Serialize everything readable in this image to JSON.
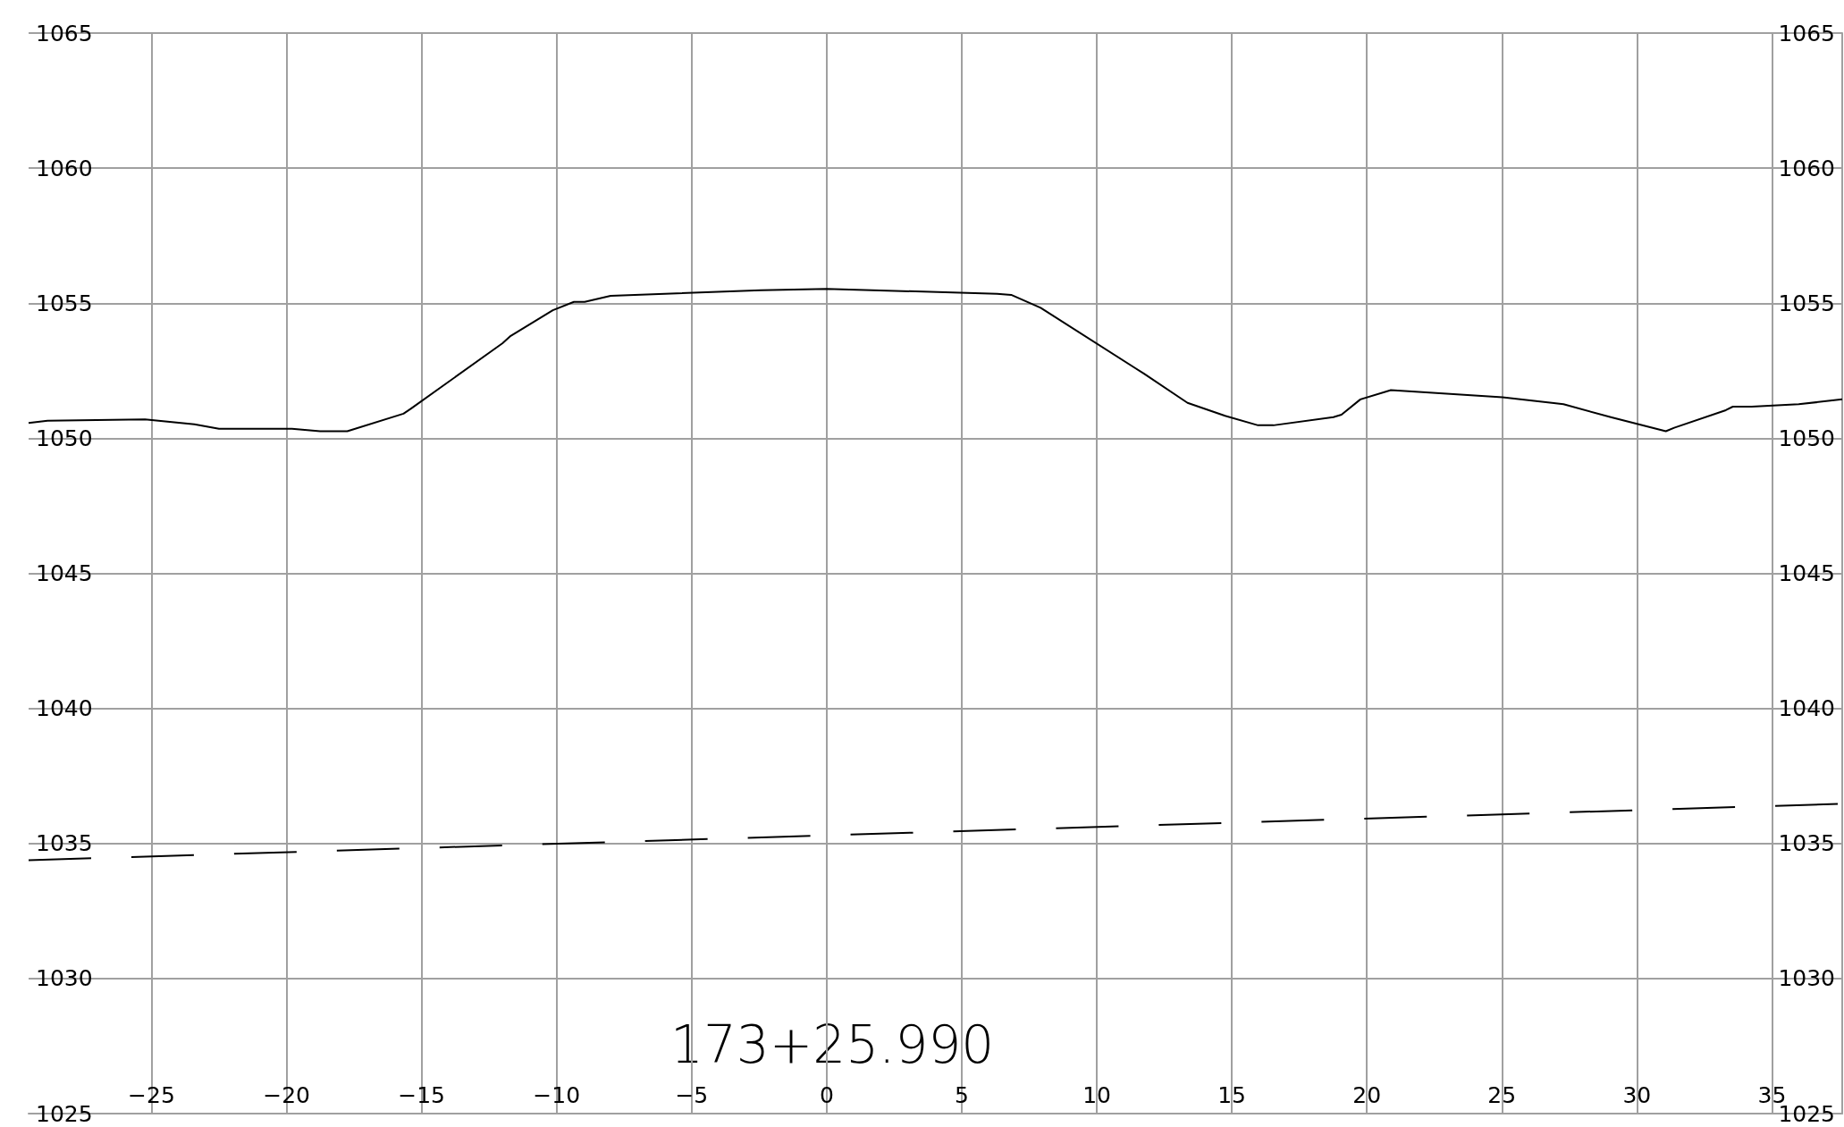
{
  "chart_data": {
    "type": "line",
    "annotations": [
      "173+25.990"
    ],
    "xlim": [
      -29.55,
      37.6
    ],
    "ylim": [
      1025,
      1065
    ],
    "y2lim": [
      1025,
      1065
    ],
    "xticks": [
      {
        "value": -25,
        "label": "−25"
      },
      {
        "value": -20,
        "label": "−20"
      },
      {
        "value": -15,
        "label": "−15"
      },
      {
        "value": -10,
        "label": "−10"
      },
      {
        "value": -5,
        "label": "−5"
      },
      0,
      5,
      10,
      15,
      20,
      25,
      30,
      35
    ],
    "yticks": [
      1025,
      1030,
      1035,
      1040,
      1045,
      1050,
      1055,
      1060,
      1065
    ],
    "y2ticks": [
      1025,
      1030,
      1035,
      1040,
      1045,
      1050,
      1055,
      1060,
      1065
    ],
    "grid": true,
    "marker": "none",
    "series": [
      {
        "color": "#000000",
        "line_style": "solid",
        "x": [
          -29.55,
          -28.85,
          -25.24,
          -23.41,
          -22.5,
          -19.8,
          -18.76,
          -17.75,
          -15.67,
          -15.4,
          -12.0,
          -11.7,
          -10.14,
          -9.36,
          -8.96,
          -8.0,
          -2.44,
          0,
          6.31,
          6.83,
          7.92,
          11.75,
          13.36,
          14.75,
          15.97,
          16.54,
          18.76,
          19.06,
          19.76,
          20.89,
          25.02,
          26.85,
          27.28,
          29.03,
          31.07,
          31.38,
          33.29,
          33.55,
          34.25,
          35.99,
          37.6
        ],
        "values": [
          1050.57,
          1050.65,
          1050.7,
          1050.52,
          1050.35,
          1050.35,
          1050.26,
          1050.26,
          1050.91,
          1051.09,
          1053.52,
          1053.79,
          1054.74,
          1055.05,
          1055.05,
          1055.27,
          1055.48,
          1055.53,
          1055.35,
          1055.31,
          1054.83,
          1052.39,
          1051.31,
          1050.83,
          1050.48,
          1050.48,
          1050.78,
          1050.87,
          1051.44,
          1051.78,
          1051.52,
          1051.31,
          1051.26,
          1050.78,
          1050.26,
          1050.39,
          1051.04,
          1051.17,
          1051.17,
          1051.26,
          1051.44
        ]
      },
      {
        "color": "#000000",
        "line_style": "dashed",
        "x": [
          -29.55,
          37.6
        ],
        "values": [
          1034.38,
          1036.47
        ]
      }
    ]
  }
}
